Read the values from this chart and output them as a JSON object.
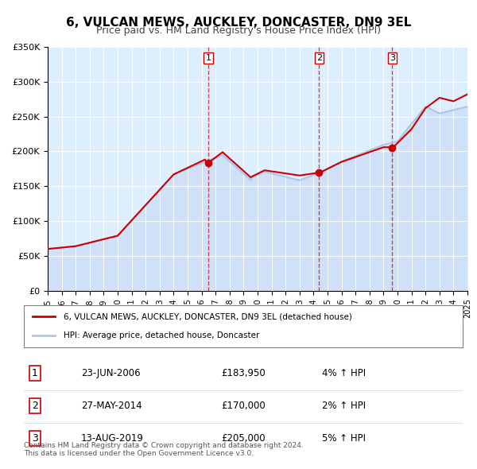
{
  "title": "6, VULCAN MEWS, AUCKLEY, DONCASTER, DN9 3EL",
  "subtitle": "Price paid vs. HM Land Registry's House Price Index (HPI)",
  "hpi_label": "HPI: Average price, detached house, Doncaster",
  "property_label": "6, VULCAN MEWS, AUCKLEY, DONCASTER, DN9 3EL (detached house)",
  "hpi_color": "#aec6e8",
  "property_color": "#cc0000",
  "background_color": "#ddeeff",
  "plot_bg_color": "#ddeeff",
  "grid_color": "#ffffff",
  "transactions": [
    {
      "num": 1,
      "date": "23-JUN-2006",
      "price": 183950,
      "pct": "4%",
      "direction": "↑",
      "year": 2006.47
    },
    {
      "num": 2,
      "date": "27-MAY-2014",
      "price": 170000,
      "pct": "2%",
      "direction": "↑",
      "year": 2014.4
    },
    {
      "num": 3,
      "date": "13-AUG-2019",
      "price": 205000,
      "pct": "5%",
      "direction": "↑",
      "year": 2019.62
    }
  ],
  "footer": "Contains HM Land Registry data © Crown copyright and database right 2024.\nThis data is licensed under the Open Government Licence v3.0.",
  "ylim": [
    0,
    350000
  ],
  "yticks": [
    0,
    50000,
    100000,
    150000,
    200000,
    250000,
    300000,
    350000
  ],
  "ytick_labels": [
    "£0",
    "£50K",
    "£100K",
    "£150K",
    "£200K",
    "£250K",
    "£300K",
    "£350K"
  ],
  "xmin": 1995,
  "xmax": 2025
}
